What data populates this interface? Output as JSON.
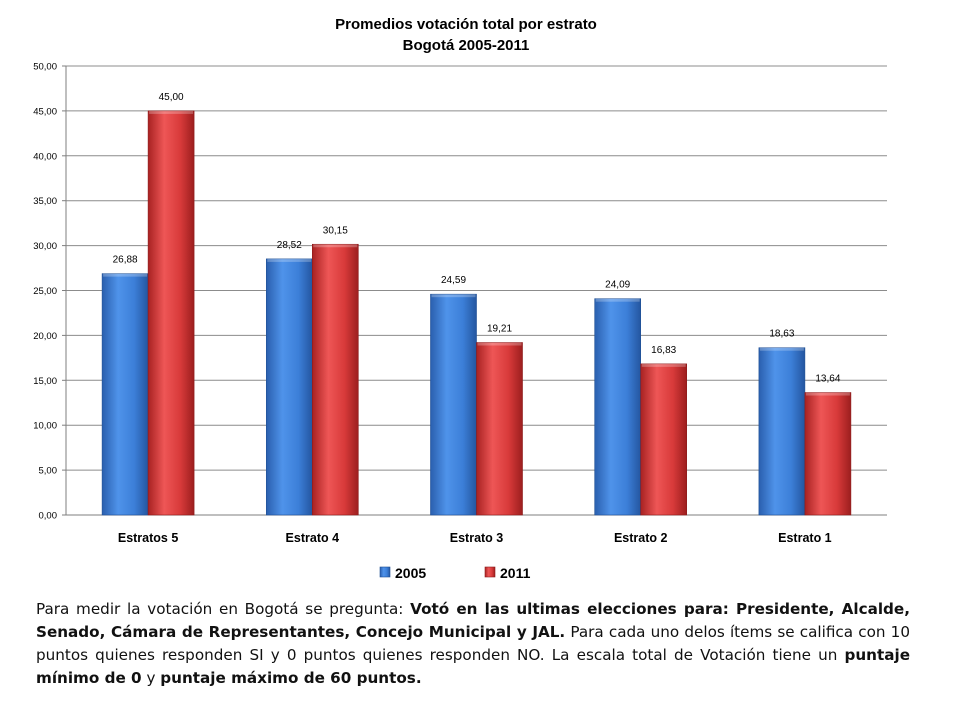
{
  "chart_data": {
    "type": "bar",
    "title": "Promedios  votación total por estrato",
    "subtitle": "Bogotá  2005-2011",
    "categories": [
      "Estratos 5",
      "Estrato 4",
      "Estrato 3",
      "Estrato 2",
      "Estrato 1"
    ],
    "series": [
      {
        "name": "2005",
        "color": "#3c7fd8",
        "values": [
          26.88,
          28.52,
          24.59,
          24.09,
          18.63
        ],
        "labels": [
          "26,88",
          "28,52",
          "24,59",
          "24,09",
          "18,63"
        ]
      },
      {
        "name": "2011",
        "color": "#d83a3a",
        "values": [
          45.0,
          30.15,
          19.21,
          16.83,
          13.64
        ],
        "labels": [
          "45,00",
          "30,15",
          "19,21",
          "16,83",
          "13,64"
        ]
      }
    ],
    "ylim": [
      0,
      50
    ],
    "yticks": [
      "0,00",
      "5,00",
      "10,00",
      "15,00",
      "20,00",
      "25,00",
      "30,00",
      "35,00",
      "40,00",
      "45,00",
      "50,00"
    ],
    "grid": true,
    "legend_position": "bottom"
  },
  "description": {
    "intro": "Para medir la votación en Bogotá se pregunta: ",
    "question": "Votó en las ultimas elecciones para: Presidente, Alcalde, Senado, Cámara de Representantes, Concejo Municipal y JAL.",
    "middle": " Para cada uno delos ítems se  califica con 10 puntos quienes responden SI y  0 puntos quienes responden NO. La escala total de Votación tiene un ",
    "min_score": "puntaje mínimo de 0",
    "connector": "  y ",
    "max_score": "puntaje máximo de 60 puntos."
  }
}
